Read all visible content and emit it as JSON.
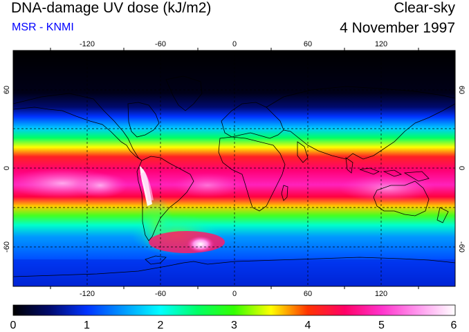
{
  "header": {
    "title": "DNA-damage UV dose (kJ/m2)",
    "credit": "MSR - KNMI",
    "condition": "Clear-sky",
    "date": "4 November 1997"
  },
  "map": {
    "lon_range": [
      -180,
      180
    ],
    "lat_range": [
      -90,
      90
    ],
    "grid": "dashed every 30 degrees",
    "lon_tick_labels": [
      "-120",
      "-60",
      "0",
      "60",
      "120"
    ],
    "lat_tick_labels": [
      "60",
      "0",
      "-60"
    ]
  },
  "colorbar": {
    "labels": [
      "0",
      "1",
      "2",
      "3",
      "4",
      "5",
      "6"
    ],
    "stops": [
      {
        "value": 0,
        "color": "#000000"
      },
      {
        "value": 0.5,
        "color": "#000a6e"
      },
      {
        "value": 1.0,
        "color": "#0033ff"
      },
      {
        "value": 1.5,
        "color": "#0099ff"
      },
      {
        "value": 2.0,
        "color": "#00ffff"
      },
      {
        "value": 2.5,
        "color": "#00ff66"
      },
      {
        "value": 3.0,
        "color": "#33ff00"
      },
      {
        "value": 3.5,
        "color": "#ffff00"
      },
      {
        "value": 4.0,
        "color": "#ff3300"
      },
      {
        "value": 4.5,
        "color": "#ff0066"
      },
      {
        "value": 5.0,
        "color": "#ff33cc"
      },
      {
        "value": 5.5,
        "color": "#ff99ee"
      },
      {
        "value": 6.0,
        "color": "#ffffff"
      }
    ]
  }
}
